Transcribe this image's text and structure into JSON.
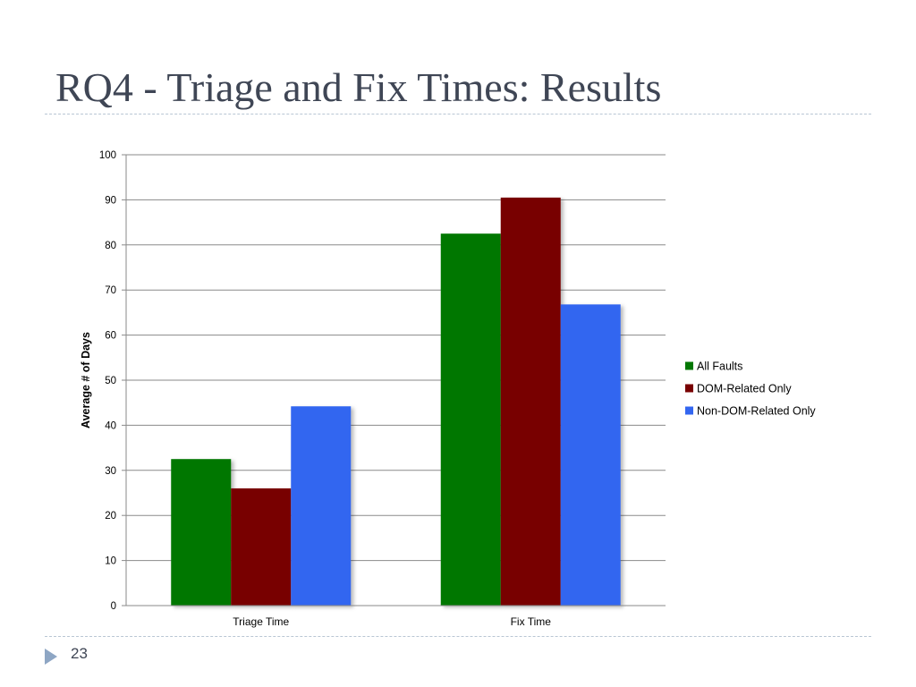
{
  "slide": {
    "title": "RQ4 - Triage and Fix Times: Results",
    "page_number": "23"
  },
  "chart_data": {
    "type": "bar",
    "title": "",
    "xlabel": "",
    "ylabel": "Average # of Days",
    "ylim": [
      0,
      100
    ],
    "yticks": [
      0,
      10,
      20,
      30,
      40,
      50,
      60,
      70,
      80,
      90,
      100
    ],
    "grid": true,
    "legend_position": "right",
    "categories": [
      "Triage Time",
      "Fix Time"
    ],
    "series": [
      {
        "name": "All Faults",
        "color": "#037703",
        "values": [
          32.5,
          82.5
        ]
      },
      {
        "name": "DOM-Related Only",
        "color": "#780001",
        "values": [
          26,
          90.5
        ]
      },
      {
        "name": "Non-DOM-Related Only",
        "color": "#3366f0",
        "values": [
          44.2,
          66.8
        ]
      }
    ]
  }
}
